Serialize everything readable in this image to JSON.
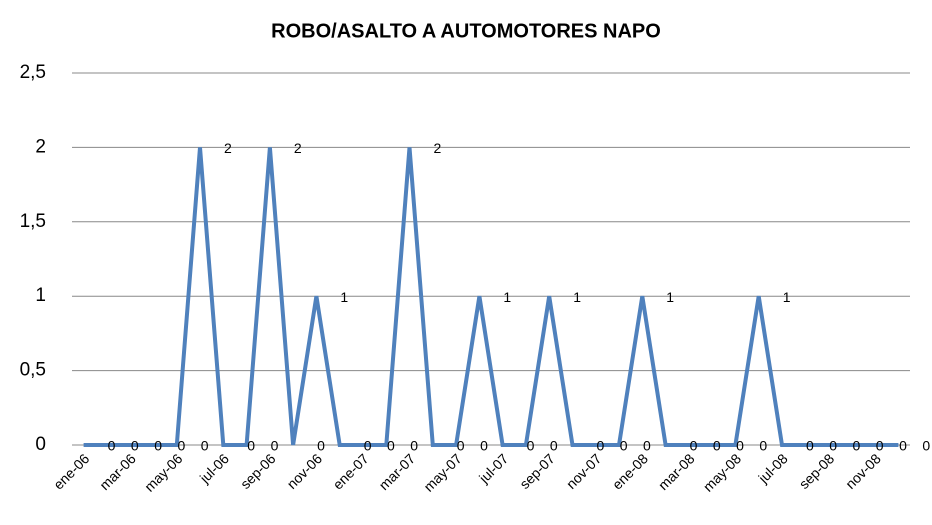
{
  "chart_data": {
    "type": "line",
    "title": "ROBO/ASALTO A AUTOMOTORES NAPO",
    "categories": [
      "ene-06",
      null,
      "mar-06",
      null,
      "may-06",
      null,
      "jul-06",
      null,
      "sep-06",
      null,
      "nov-06",
      null,
      "ene-07",
      null,
      "mar-07",
      null,
      "may-07",
      null,
      "jul-07",
      null,
      "sep-07",
      null,
      "nov-07",
      null,
      "ene-08",
      null,
      "mar-08",
      null,
      "may-08",
      null,
      "jul-08",
      null,
      "sep-08",
      null,
      "nov-08",
      null
    ],
    "values": [
      0,
      0,
      0,
      0,
      0,
      2,
      0,
      0,
      2,
      0,
      1,
      0,
      0,
      0,
      2,
      0,
      0,
      1,
      0,
      0,
      1,
      0,
      0,
      0,
      1,
      0,
      0,
      0,
      0,
      1,
      0,
      0,
      0,
      0,
      0,
      0
    ],
    "color": "#4f81bd",
    "ylim": [
      0,
      2.5
    ],
    "yticks": [
      0,
      {
        "value": 0.5,
        "label": "0,5"
      },
      1,
      {
        "value": 1.5,
        "label": "1,5"
      },
      2,
      {
        "value": 2.5,
        "label": "2,5"
      }
    ],
    "grid": true
  }
}
